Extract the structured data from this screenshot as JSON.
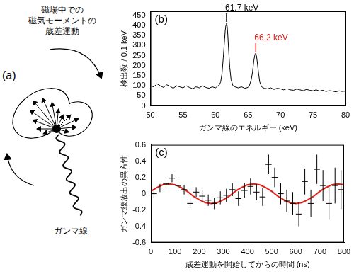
{
  "diagram": {
    "label": "(a)",
    "precession_label": [
      "磁場中での",
      "磁気モーメントの",
      "歳差運動"
    ],
    "gamma_label": "ガンマ線"
  },
  "chart_data": [
    {
      "panel": "(b)",
      "type": "line",
      "x_label": "ガンマ線のエネルギー (keV)",
      "y_label": "検出数 / 0.1 keV",
      "x": [
        50,
        50.5,
        51,
        51.5,
        52,
        52.5,
        53,
        53.5,
        54,
        54.5,
        55,
        55.5,
        56,
        56.5,
        57,
        57.5,
        58,
        58.5,
        59,
        59.5,
        60,
        60.4,
        60.6,
        60.8,
        61.0,
        61.2,
        61.4,
        61.5,
        61.6,
        61.7,
        61.8,
        61.9,
        62.0,
        62.2,
        62.4,
        62.7,
        63,
        63.5,
        64,
        64.5,
        65,
        65.2,
        65.5,
        65.7,
        65.9,
        66.0,
        66.1,
        66.2,
        66.3,
        66.4,
        66.6,
        66.8,
        67.1,
        67.5,
        68,
        68.5,
        69,
        69.5,
        70,
        70.5,
        71,
        71.5,
        72,
        72.5,
        73,
        73.5,
        74,
        74.5,
        75,
        75.5,
        76,
        76.5,
        77,
        77.5,
        78,
        78.5,
        79,
        79.5,
        80
      ],
      "values": [
        100,
        95,
        110,
        100,
        92,
        105,
        98,
        88,
        100,
        95,
        90,
        100,
        92,
        85,
        95,
        90,
        100,
        92,
        88,
        95,
        90,
        100,
        105,
        120,
        160,
        240,
        330,
        375,
        400,
        410,
        395,
        350,
        290,
        190,
        130,
        100,
        95,
        90,
        95,
        88,
        92,
        100,
        130,
        170,
        225,
        245,
        258,
        262,
        250,
        225,
        170,
        120,
        95,
        88,
        85,
        90,
        82,
        88,
        85,
        80,
        86,
        80,
        78,
        84,
        80,
        76,
        82,
        78,
        75,
        80,
        74,
        78,
        72,
        76,
        74,
        70,
        75,
        72,
        74
      ],
      "color": "#000000",
      "xlim": [
        50,
        80
      ],
      "xticks": [
        50,
        55,
        60,
        65,
        70,
        75,
        80
      ],
      "ylim": [
        0,
        470
      ],
      "yticks": [
        0,
        50,
        100,
        150,
        200,
        250,
        300,
        350,
        400,
        450
      ],
      "grid": false,
      "annotations": [
        {
          "text": "61.7 keV",
          "x": 61.7,
          "color": "#000000"
        },
        {
          "text": "66.2 keV",
          "x": 66.2,
          "color": "#e0201a"
        }
      ]
    },
    {
      "panel": "(c)",
      "type": "scatter",
      "x_label": "歳差運動を開始してからの時間 (ns)",
      "y_label": "ガンマ線放出の異方性",
      "xlim": [
        0,
        800
      ],
      "xticks": [
        0,
        100,
        200,
        300,
        400,
        500,
        600,
        700,
        800
      ],
      "ylim": [
        -0.6,
        0.6
      ],
      "yticks": [
        -0.6,
        -0.4,
        -0.2,
        0,
        0.2,
        0.4,
        0.6
      ],
      "grid": false,
      "series": [
        {
          "type": "scatter",
          "color": "#000000",
          "marker": "none",
          "x": [
            12.5,
            37.5,
            62.5,
            87.5,
            112.5,
            137.5,
            162.5,
            187.5,
            212.5,
            237.5,
            262.5,
            287.5,
            312.5,
            337.5,
            362.5,
            387.5,
            412.5,
            437.5,
            462.5,
            487.5,
            512.5,
            537.5,
            562.5,
            587.5,
            612.5,
            637.5,
            662.5,
            687.5,
            712.5,
            737.5,
            762.5,
            787.5
          ],
          "values": [
            0.0,
            0.07,
            0.12,
            0.19,
            0.1,
            0.05,
            -0.12,
            0.02,
            -0.03,
            -0.08,
            -0.12,
            -0.05,
            -0.02,
            0.05,
            -0.06,
            0.04,
            0.09,
            0.02,
            -0.04,
            0.36,
            0.2,
            0.0,
            -0.09,
            -0.12,
            -0.25,
            0.15,
            -0.12,
            0.3,
            0.1,
            -0.12,
            0.1,
            0.05
          ],
          "yerr": [
            0.05,
            0.05,
            0.05,
            0.05,
            0.06,
            0.06,
            0.06,
            0.06,
            0.07,
            0.07,
            0.07,
            0.08,
            0.08,
            0.08,
            0.09,
            0.09,
            0.1,
            0.1,
            0.11,
            0.12,
            0.12,
            0.13,
            0.14,
            0.14,
            0.15,
            0.16,
            0.17,
            0.18,
            0.19,
            0.2,
            0.22,
            0.24
          ],
          "xerr": [
            12.5,
            12.5,
            12.5,
            12.5,
            12.5,
            12.5,
            12.5,
            12.5,
            12.5,
            12.5,
            12.5,
            12.5,
            12.5,
            12.5,
            12.5,
            12.5,
            12.5,
            12.5,
            12.5,
            12.5,
            12.5,
            12.5,
            12.5,
            12.5,
            12.5,
            12.5,
            12.5,
            12.5,
            12.5,
            12.5,
            12.5,
            12.5
          ]
        },
        {
          "type": "line",
          "color": "#e0201a",
          "line_style": "solid",
          "x": [
            0,
            25,
            50,
            75,
            100,
            125,
            150,
            175,
            200,
            225,
            250,
            275,
            300,
            325,
            350,
            375,
            400,
            425,
            450,
            475,
            500,
            525,
            550,
            575,
            600,
            625,
            650,
            675,
            700,
            725,
            750,
            775,
            800
          ],
          "values": [
            0.03,
            0.075,
            0.11,
            0.12,
            0.11,
            0.075,
            0.03,
            -0.03,
            -0.075,
            -0.11,
            -0.12,
            -0.11,
            -0.075,
            -0.03,
            0.03,
            0.075,
            0.11,
            0.12,
            0.11,
            0.075,
            0.03,
            -0.03,
            -0.075,
            -0.11,
            -0.12,
            -0.11,
            -0.075,
            -0.03,
            0.03,
            0.075,
            0.11,
            0.12,
            0.11
          ]
        }
      ]
    }
  ]
}
